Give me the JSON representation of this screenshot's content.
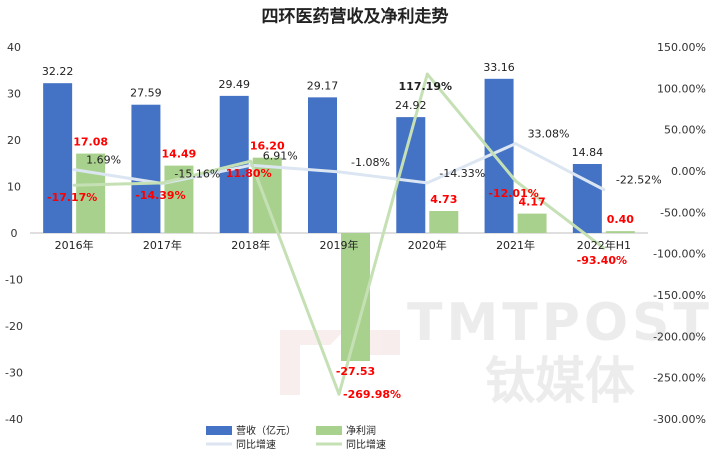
{
  "chart_data": {
    "type": "bar",
    "title": "四环医药营收及净利走势",
    "categories": [
      "2016年",
      "2017年",
      "2018年",
      "2019年",
      "2020年",
      "2021年",
      "2022年H1"
    ],
    "left_axis": {
      "min": -40,
      "max": 40,
      "step": 10,
      "ticks": [
        "40",
        "30",
        "20",
        "10",
        "0",
        "-10",
        "-20",
        "-30",
        "-40"
      ]
    },
    "right_axis": {
      "min": -300,
      "max": 150,
      "step": 50,
      "ticks": [
        "150.00%",
        "100.00%",
        "50.00%",
        "0.00%",
        "-50.00%",
        "-100.00%",
        "-150.00%",
        "-200.00%",
        "-250.00%",
        "-300.00%"
      ]
    },
    "series": [
      {
        "name": "营收（亿元）",
        "type": "bar",
        "axis": "left",
        "color": "#4472c4",
        "values": [
          32.22,
          27.59,
          29.49,
          29.17,
          24.92,
          33.16,
          14.84
        ],
        "labels": [
          "32.22",
          "27.59",
          "29.49",
          "29.17",
          "24.92",
          "33.16",
          "14.84"
        ]
      },
      {
        "name": "净利润",
        "type": "bar",
        "axis": "left",
        "color": "#a9d18e",
        "values": [
          17.08,
          14.49,
          16.2,
          -27.53,
          4.73,
          4.17,
          0.4
        ],
        "labels": [
          "17.08",
          "14.49",
          "16.20",
          "-27.53",
          "4.73",
          "4.17",
          "0.40"
        ]
      },
      {
        "name": "同比增速",
        "type": "line",
        "axis": "right",
        "color": "#dce6f2",
        "values": [
          1.69,
          -15.16,
          6.91,
          -1.08,
          -14.33,
          33.08,
          -22.52
        ],
        "labels": [
          "1.69%",
          "-15.16%",
          "6.91%",
          "-1.08%",
          "-14.33%",
          "33.08%",
          "-22.52%"
        ]
      },
      {
        "name": "同比增速",
        "type": "line",
        "axis": "right",
        "color": "#c5e0b4",
        "values": [
          -17.17,
          -14.39,
          11.8,
          -269.98,
          117.19,
          -12.01,
          -93.4
        ],
        "labels": [
          "-17.17%",
          "-14.39%",
          "11.80%",
          "-269.98%",
          "117.19%",
          "-12.01%",
          "-93.40%"
        ]
      }
    ],
    "legend_position": "bottom-center"
  },
  "watermark": {
    "text": "TMTPOST",
    "brand": "钛媒体"
  }
}
